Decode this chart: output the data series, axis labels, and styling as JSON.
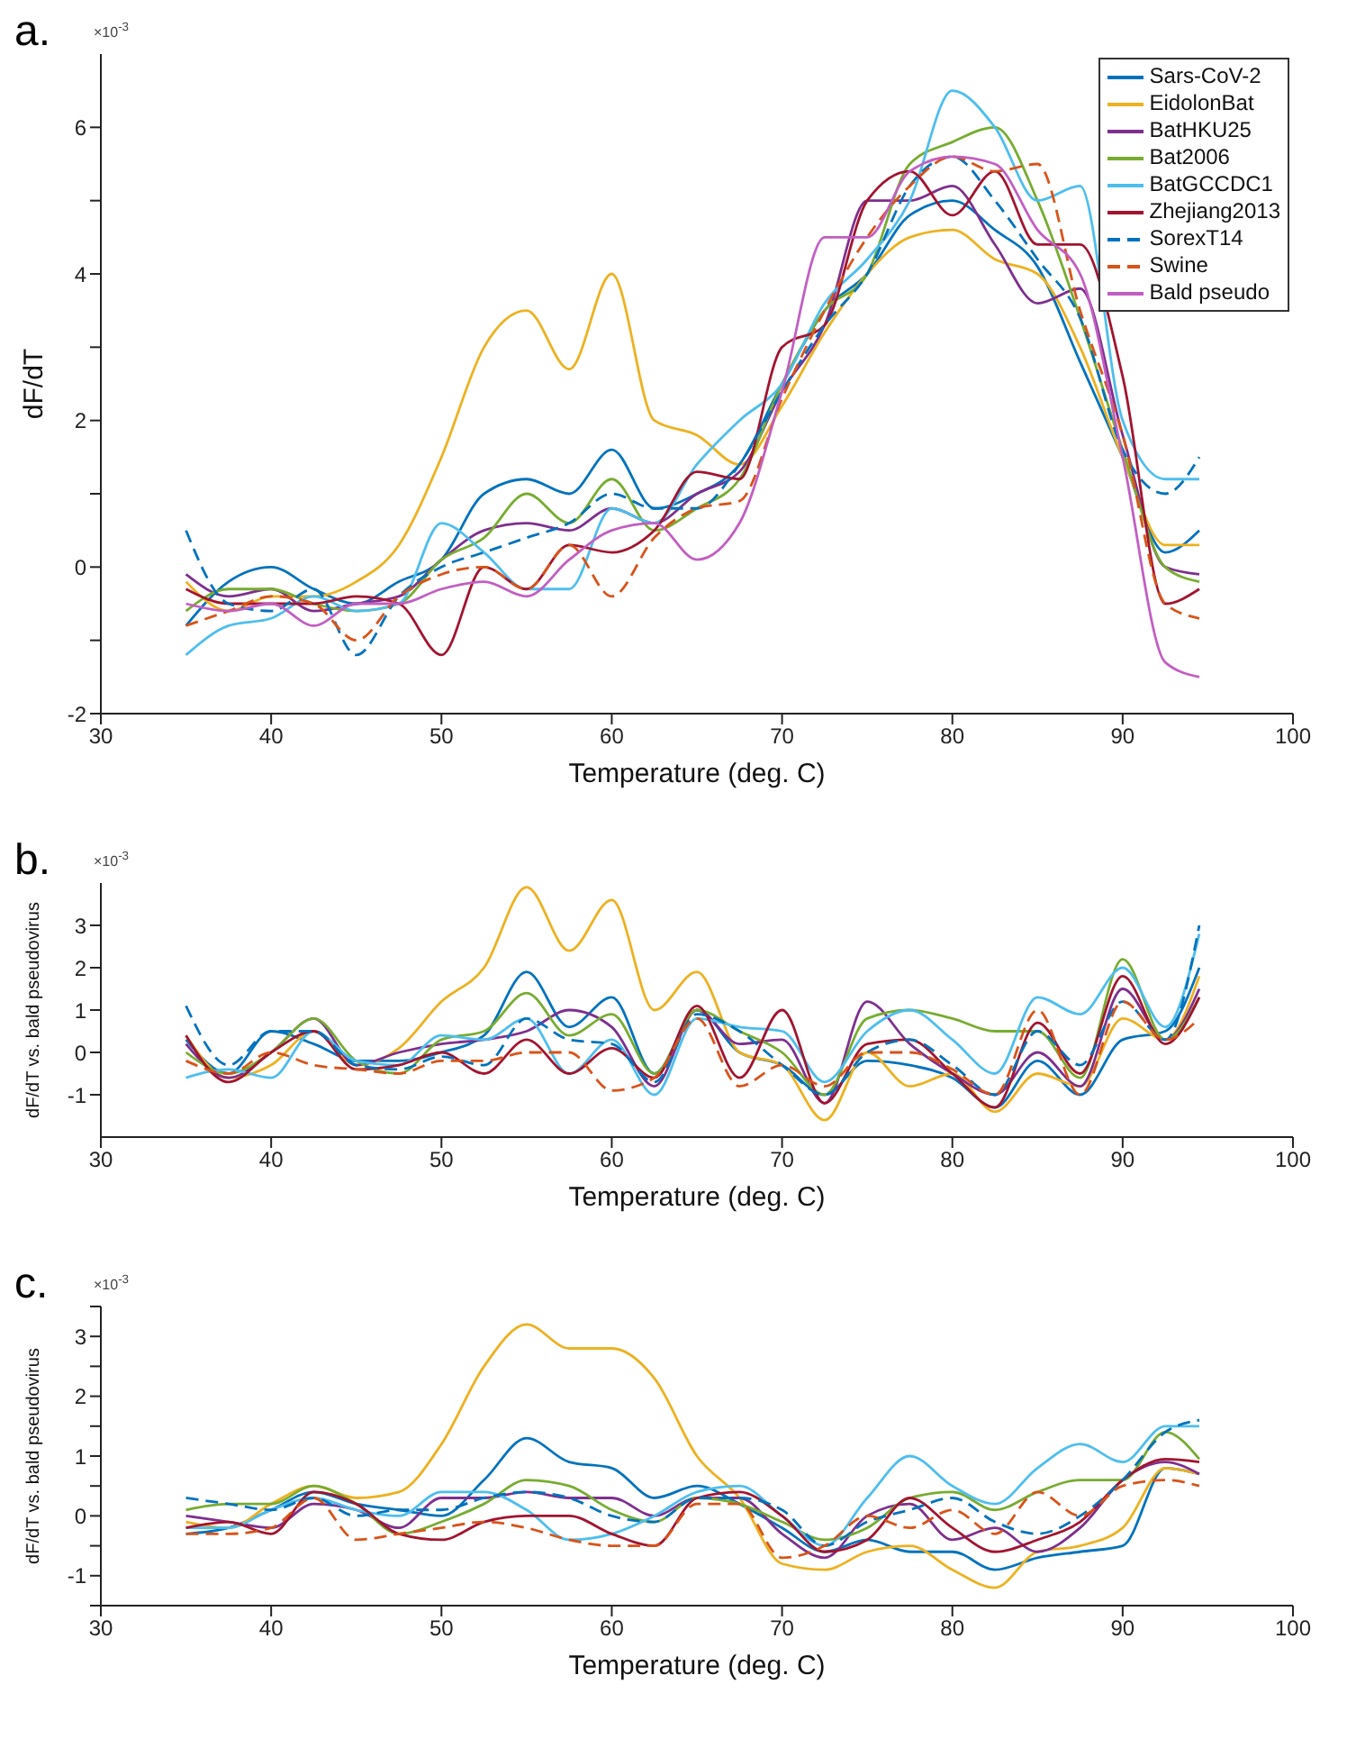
{
  "chart_data": [
    {
      "type": "line",
      "title": "a.",
      "xlabel": "Temperature (deg. C)",
      "ylabel": "dF/dT",
      "annotations": [
        "×10$^{-3}$"
      ],
      "xlim": [
        30,
        100
      ],
      "xticks": [
        30,
        40,
        50,
        60,
        70,
        80,
        90,
        100
      ],
      "ylim": [
        -2,
        7
      ],
      "yticks": [
        -2,
        {
          "value": -1,
          "label": null
        },
        0,
        {
          "value": 1,
          "label": null
        },
        2,
        {
          "value": 3,
          "label": null
        },
        4,
        {
          "value": 5,
          "label": null
        },
        6
      ],
      "grid": false,
      "legend": "top right",
      "x": [
        35,
        37.5,
        40,
        42.5,
        45,
        47.5,
        50,
        52.5,
        55,
        57.5,
        60,
        62.5,
        65,
        67.5,
        70,
        72.5,
        75,
        77.5,
        80,
        82.5,
        85,
        87.5,
        90,
        92.5,
        94.5
      ],
      "series": [
        {
          "name": "Sars-CoV-2",
          "color": "#0072bd",
          "values": [
            -0.8,
            -0.2,
            0,
            -0.3,
            -0.5,
            -0.2,
            0.1,
            1.0,
            1.2,
            1.0,
            1.6,
            0.8,
            1.0,
            1.4,
            2.5,
            3.5,
            4.0,
            4.8,
            5.0,
            4.6,
            4.1,
            2.8,
            1.5,
            0.2,
            0.5
          ]
        },
        {
          "name": "EidolonBat",
          "color": "#edb120",
          "values": [
            -0.2,
            -0.6,
            -0.4,
            -0.4,
            -0.2,
            0.3,
            1.5,
            3.0,
            3.5,
            2.7,
            4.0,
            2.0,
            1.8,
            1.4,
            2.2,
            3.2,
            4.0,
            4.5,
            4.6,
            4.2,
            4.0,
            3.0,
            1.5,
            0.3,
            0.3
          ]
        },
        {
          "name": "BatHKU25",
          "color": "#7e2f8e",
          "values": [
            -0.1,
            -0.4,
            -0.3,
            -0.6,
            -0.5,
            -0.4,
            0.1,
            0.5,
            0.6,
            0.5,
            0.8,
            0.6,
            1.0,
            1.3,
            2.4,
            3.3,
            5.0,
            5.0,
            5.2,
            4.4,
            3.6,
            3.8,
            1.8,
            0,
            -0.1
          ]
        },
        {
          "name": "Bat2006",
          "color": "#77ac30",
          "values": [
            -0.6,
            -0.3,
            -0.3,
            -0.5,
            -0.6,
            -0.5,
            0.1,
            0.4,
            1.0,
            0.6,
            1.2,
            0.5,
            0.8,
            1.2,
            2.5,
            3.5,
            4.0,
            5.5,
            5.8,
            6.0,
            5.0,
            3.4,
            1.6,
            0,
            -0.2
          ]
        },
        {
          "name": "BatGCCDC1",
          "color": "#4dbeee",
          "values": [
            -1.2,
            -0.8,
            -0.7,
            -0.4,
            -0.6,
            -0.5,
            0.6,
            0.2,
            -0.3,
            -0.3,
            0.8,
            0.6,
            1.4,
            2.0,
            2.5,
            3.6,
            4.2,
            5.0,
            6.5,
            6.0,
            5.0,
            5.2,
            2.0,
            1.2,
            1.2
          ]
        },
        {
          "name": "Zhejiang2013",
          "color": "#a2142f",
          "values": [
            -0.3,
            -0.5,
            -0.5,
            -0.5,
            -0.4,
            -0.5,
            -1.2,
            0,
            -0.3,
            0.3,
            0.2,
            0.5,
            1.3,
            1.2,
            3.0,
            3.3,
            5.0,
            5.4,
            4.8,
            5.4,
            4.4,
            4.4,
            2.6,
            -0.5,
            -0.3
          ]
        },
        {
          "name": "SorexT14",
          "color": "#0072bd",
          "line_style": "dashed",
          "values": [
            0.5,
            -0.5,
            -0.6,
            -0.3,
            -1.2,
            -0.4,
            0,
            0.2,
            0.4,
            0.6,
            1.0,
            0.8,
            0.8,
            1.4,
            2.4,
            3.3,
            4.0,
            5.2,
            5.6,
            5.0,
            4.2,
            3.4,
            1.6,
            1.0,
            1.5
          ]
        },
        {
          "name": "Swine",
          "color": "#d95319",
          "line_style": "dashed",
          "values": [
            -0.8,
            -0.6,
            -0.4,
            -0.5,
            -1.0,
            -0.4,
            -0.1,
            0,
            -0.3,
            0.3,
            -0.4,
            0.4,
            0.8,
            0.9,
            2.3,
            3.5,
            4.5,
            5.2,
            5.6,
            5.4,
            5.5,
            3.5,
            1.8,
            -0.5,
            -0.7
          ]
        },
        {
          "name": "Bald pseudo",
          "color": "#c25ec2",
          "values": [
            -0.5,
            -0.6,
            -0.5,
            -0.8,
            -0.5,
            -0.5,
            -0.3,
            -0.2,
            -0.4,
            0.1,
            0.5,
            0.6,
            0.1,
            0.6,
            2.4,
            4.5,
            4.5,
            5.4,
            5.6,
            5.5,
            4.6,
            4.0,
            1.5,
            -1.3,
            -1.5
          ]
        }
      ]
    },
    {
      "type": "line",
      "title": "b.",
      "xlabel": "Temperature (deg. C)",
      "ylabel": "dF/dT vs. bald pseudovirus",
      "annotations": [
        "×10$^{-3}$"
      ],
      "xlim": [
        30,
        100
      ],
      "xticks": [
        30,
        40,
        50,
        60,
        70,
        80,
        90,
        100
      ],
      "ylim": [
        -2,
        4
      ],
      "yticks": [
        -1,
        0,
        1,
        2,
        3
      ],
      "grid": false,
      "x": [
        35,
        37.5,
        40,
        42.5,
        45,
        47.5,
        50,
        52.5,
        55,
        57.5,
        60,
        62.5,
        65,
        67.5,
        70,
        72.5,
        75,
        77.5,
        80,
        82.5,
        85,
        87.5,
        90,
        92.5,
        94.5
      ],
      "series": [
        {
          "color": "#0072bd",
          "values": [
            0.3,
            -0.5,
            0.5,
            0.2,
            -0.2,
            -0.2,
            0,
            0.4,
            1.9,
            0.6,
            1.3,
            -0.5,
            1.0,
            0,
            -0.3,
            -1.0,
            -0.2,
            -0.3,
            -0.6,
            -1.3,
            -0.2,
            -1.0,
            0.3,
            0.5,
            2.0
          ]
        },
        {
          "color": "#edb120",
          "values": [
            0.4,
            -0.6,
            -0.3,
            0.5,
            -0.3,
            0.1,
            1.2,
            2.0,
            3.9,
            2.4,
            3.6,
            1.0,
            1.9,
            0,
            -0.3,
            -1.6,
            0,
            -0.8,
            -0.5,
            -1.4,
            -0.5,
            -0.8,
            0.8,
            0.3,
            1.8
          ]
        },
        {
          "color": "#7e2f8e",
          "values": [
            0.2,
            -0.6,
            0,
            0.8,
            -0.3,
            0,
            0.2,
            0.3,
            0.5,
            1.0,
            0.6,
            -0.8,
            1.0,
            0.2,
            0.3,
            -1.2,
            1.2,
            0.2,
            -0.5,
            -1.0,
            0,
            -0.8,
            1.5,
            0.3,
            1.5
          ]
        },
        {
          "color": "#77ac30",
          "values": [
            0,
            -0.5,
            0,
            0.8,
            -0.2,
            -0.5,
            0.3,
            0.5,
            1.4,
            0.4,
            0.9,
            -0.5,
            1.0,
            0.5,
            0,
            -1.0,
            0.8,
            1.0,
            0.8,
            0.5,
            0.5,
            -0.6,
            2.2,
            0.3,
            1.3
          ]
        },
        {
          "color": "#4dbeee",
          "values": [
            -0.6,
            -0.4,
            -0.6,
            0.5,
            -0.2,
            -0.3,
            0.4,
            0.3,
            0.8,
            -0.5,
            0.3,
            -1.0,
            0.8,
            0.6,
            0.5,
            -0.7,
            0.5,
            1.0,
            0.3,
            -0.5,
            1.3,
            0.9,
            2.0,
            0.6,
            2.8
          ]
        },
        {
          "color": "#a2142f",
          "values": [
            0.4,
            -0.7,
            0,
            0.5,
            -0.4,
            -0.3,
            0,
            -0.5,
            0.3,
            -0.5,
            0.1,
            -0.6,
            1.1,
            -0.6,
            1.0,
            -1.2,
            0.2,
            0.3,
            -0.5,
            -1.3,
            0.7,
            -0.5,
            1.8,
            0.2,
            1.3
          ]
        },
        {
          "color": "#0072bd",
          "line_style": "dashed",
          "values": [
            1.1,
            -0.3,
            0.5,
            0.5,
            -0.3,
            -0.4,
            -0.1,
            -0.3,
            0.8,
            0.3,
            0.2,
            -0.7,
            0.9,
            0.5,
            -0.3,
            -1.0,
            0,
            0.3,
            -0.3,
            -1.0,
            0.5,
            -0.3,
            1.2,
            0.3,
            3.0
          ]
        },
        {
          "color": "#d95319",
          "line_style": "dashed",
          "values": [
            -0.2,
            -0.5,
            0,
            -0.3,
            -0.4,
            -0.5,
            -0.2,
            -0.2,
            0,
            0,
            -0.9,
            -0.6,
            0.8,
            -0.8,
            -0.3,
            -0.8,
            0,
            0,
            -0.4,
            -1.0,
            1.0,
            -1.0,
            1.2,
            0.3,
            0.8
          ]
        }
      ]
    },
    {
      "type": "line",
      "title": "c.",
      "xlabel": "Temperature (deg. C)",
      "ylabel": "dF/dT vs. bald pseudovirus",
      "annotations": [
        "×10$^{-3}$"
      ],
      "xlim": [
        30,
        100
      ],
      "xticks": [
        30,
        40,
        50,
        60,
        70,
        80,
        90,
        100
      ],
      "ylim": [
        -1.5,
        3.5
      ],
      "yticks": [
        {
          "value": -1.5,
          "label": null
        },
        -1,
        {
          "value": -0.5,
          "label": null
        },
        0,
        {
          "value": 0.5,
          "label": null
        },
        1,
        {
          "value": 1.5,
          "label": null
        },
        2,
        {
          "value": 2.5,
          "label": null
        },
        3,
        {
          "value": 3.5,
          "label": null
        }
      ],
      "grid": false,
      "x": [
        35,
        37.5,
        40,
        42.5,
        45,
        47.5,
        50,
        52.5,
        55,
        57.5,
        60,
        62.5,
        65,
        67.5,
        70,
        72.5,
        75,
        77.5,
        80,
        82.5,
        85,
        87.5,
        90,
        92.5,
        94.5
      ],
      "series": [
        {
          "color": "#0072bd",
          "values": [
            -0.3,
            -0.2,
            0.1,
            0.4,
            0.2,
            0.1,
            0,
            0.6,
            1.3,
            0.9,
            0.8,
            0.3,
            0.5,
            0.2,
            -0.2,
            -0.6,
            -0.4,
            -0.6,
            -0.6,
            -0.9,
            -0.7,
            -0.6,
            -0.5,
            0.8,
            0.7
          ]
        },
        {
          "color": "#edb120",
          "values": [
            -0.1,
            -0.2,
            0.2,
            0.5,
            0.3,
            0.4,
            1.2,
            2.5,
            3.2,
            2.8,
            2.8,
            2.3,
            1.0,
            0.3,
            -0.8,
            -0.9,
            -0.6,
            -0.5,
            -0.9,
            -1.2,
            -0.6,
            -0.5,
            -0.2,
            0.8,
            0.7
          ]
        },
        {
          "color": "#7e2f8e",
          "values": [
            0,
            -0.1,
            -0.2,
            0.2,
            0.1,
            -0.2,
            0.3,
            0.3,
            0.4,
            0.3,
            0.3,
            0,
            0.3,
            0.3,
            -0.3,
            -0.7,
            0,
            0.2,
            -0.4,
            -0.2,
            -0.6,
            -0.2,
            0.6,
            0.9,
            0.7
          ]
        },
        {
          "color": "#77ac30",
          "values": [
            0.1,
            0.2,
            0.2,
            0.5,
            0.2,
            -0.3,
            -0.1,
            0.2,
            0.6,
            0.5,
            0.1,
            -0.1,
            0.3,
            0.2,
            -0.1,
            -0.4,
            -0.2,
            0.3,
            0.4,
            0.1,
            0.4,
            0.6,
            0.6,
            1.4,
            0.95
          ]
        },
        {
          "color": "#4dbeee",
          "values": [
            -0.2,
            -0.2,
            0.1,
            0.3,
            0.1,
            0,
            0.4,
            0.4,
            0.1,
            -0.4,
            -0.3,
            0,
            0.4,
            0.5,
            0,
            -0.5,
            0.3,
            1.0,
            0.5,
            0.2,
            0.8,
            1.2,
            0.9,
            1.5,
            1.5
          ]
        },
        {
          "color": "#a2142f",
          "values": [
            -0.2,
            -0.1,
            -0.3,
            0.4,
            0.2,
            -0.3,
            -0.4,
            -0.1,
            0,
            0,
            -0.3,
            -0.5,
            0.3,
            0.4,
            0,
            -0.6,
            -0.4,
            0.3,
            -0.2,
            -0.6,
            -0.4,
            -0.1,
            0.6,
            0.95,
            0.9
          ]
        },
        {
          "color": "#0072bd",
          "line_style": "dashed",
          "values": [
            0.3,
            0.2,
            0.1,
            0.3,
            0,
            0.1,
            0.1,
            0.3,
            0.4,
            0.3,
            0,
            -0.1,
            0.3,
            0.3,
            0.1,
            -0.5,
            -0.1,
            0.1,
            0.3,
            -0.1,
            -0.3,
            0,
            0.6,
            1.4,
            1.6
          ]
        },
        {
          "color": "#d95319",
          "line_style": "dashed",
          "values": [
            -0.3,
            -0.3,
            -0.2,
            0.3,
            -0.4,
            -0.3,
            -0.2,
            -0.1,
            -0.2,
            -0.4,
            -0.5,
            -0.5,
            0.2,
            0.2,
            -0.7,
            -0.5,
            0,
            -0.2,
            0.1,
            -0.3,
            0.4,
            0,
            0.5,
            0.6,
            0.5
          ]
        }
      ]
    }
  ]
}
